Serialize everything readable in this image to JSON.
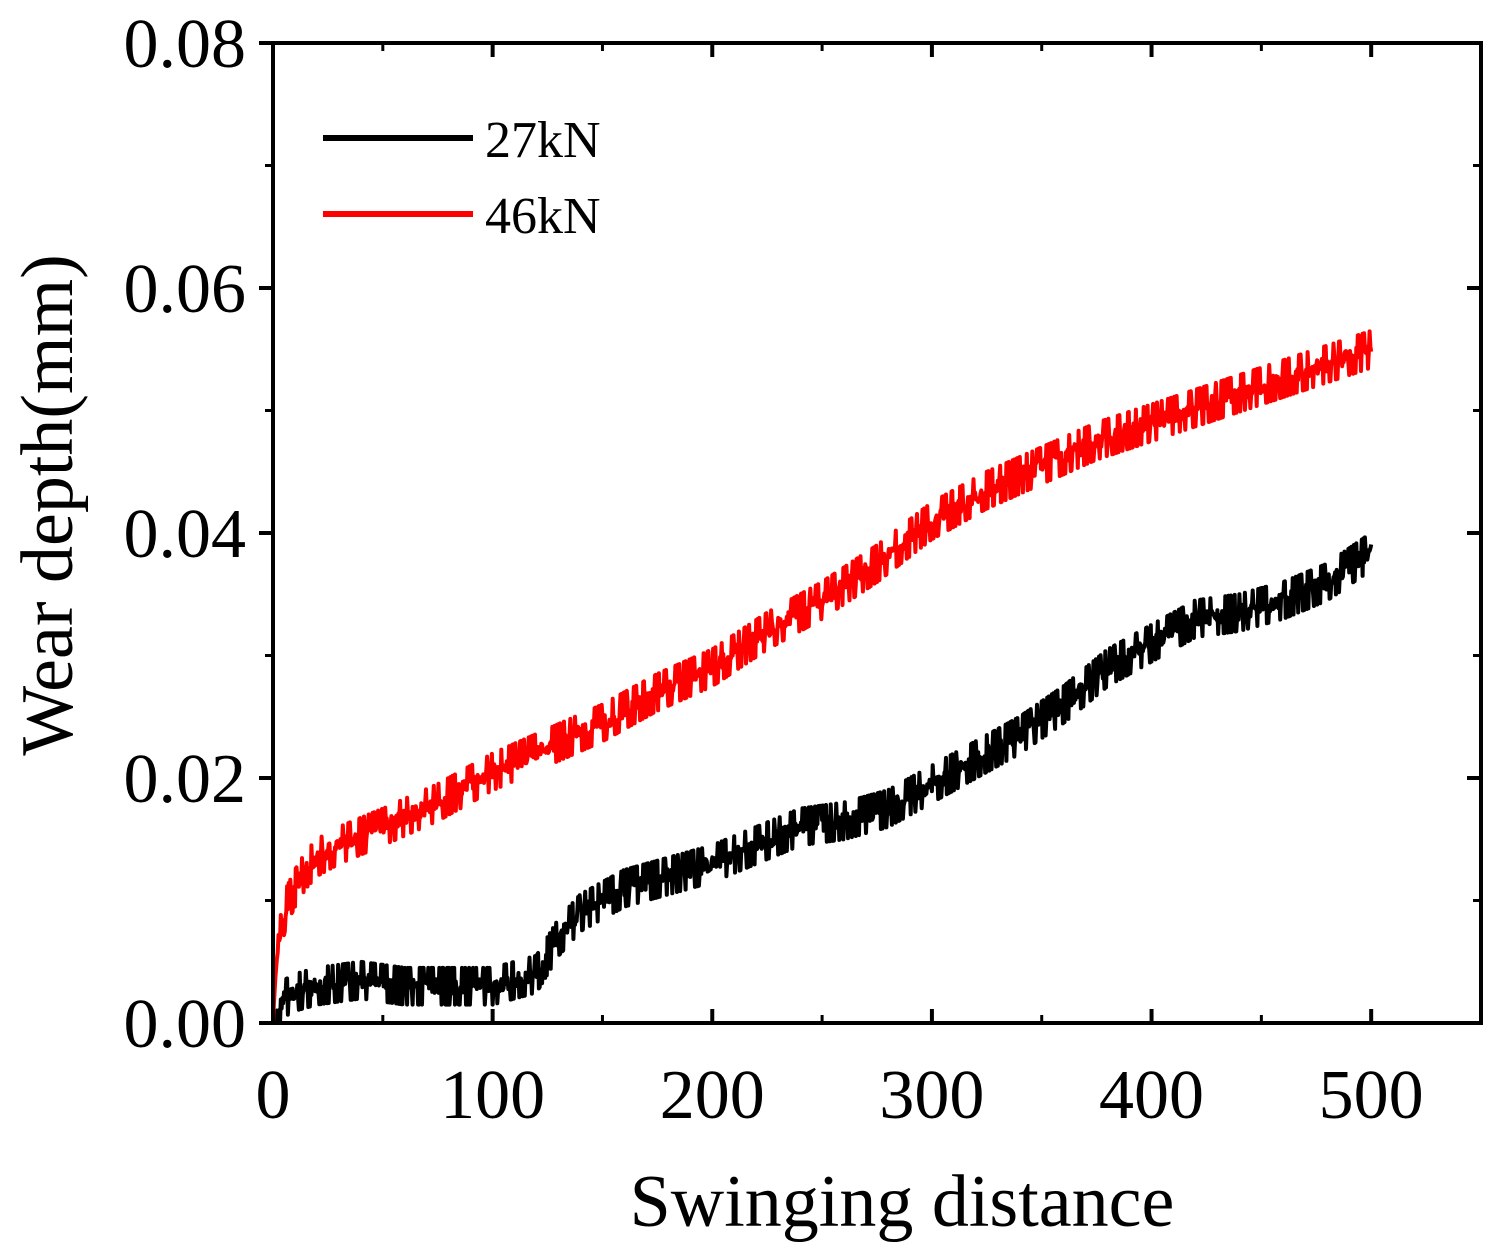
{
  "chart_data": {
    "type": "line",
    "title": "",
    "xlabel": "Swinging distance",
    "ylabel": "Wear depth(mm)",
    "xlim": [
      0,
      550
    ],
    "ylim": [
      0,
      0.08
    ],
    "x_ticks": [
      0,
      100,
      200,
      300,
      400,
      500
    ],
    "x_tick_labels": [
      "0",
      "100",
      "200",
      "300",
      "400",
      "500"
    ],
    "y_ticks": [
      0,
      0.02,
      0.04,
      0.06,
      0.08
    ],
    "y_tick_labels": [
      "0.00",
      "0.02",
      "0.04",
      "0.06",
      "0.08"
    ],
    "grid": false,
    "legend_position": "top-left",
    "series": [
      {
        "name": "27kN",
        "color": "#000000",
        "noise_amplitude": 0.0015,
        "x": [
          0,
          2,
          5,
          10,
          20,
          40,
          60,
          80,
          100,
          110,
          120,
          130,
          140,
          160,
          180,
          200,
          220,
          240,
          260,
          280,
          300,
          320,
          340,
          360,
          380,
          400,
          420,
          440,
          460,
          480,
          500
        ],
        "y": [
          0,
          0.001,
          0.002,
          0.0025,
          0.003,
          0.0035,
          0.003,
          0.003,
          0.003,
          0.0035,
          0.004,
          0.007,
          0.009,
          0.011,
          0.012,
          0.013,
          0.0145,
          0.016,
          0.0165,
          0.0175,
          0.0195,
          0.0215,
          0.0235,
          0.026,
          0.029,
          0.031,
          0.033,
          0.0335,
          0.0345,
          0.036,
          0.0385
        ]
      },
      {
        "name": "46kN",
        "color": "#ff0000",
        "noise_amplitude": 0.0015,
        "x": [
          0,
          1,
          3,
          6,
          10,
          15,
          20,
          30,
          50,
          75,
          100,
          125,
          150,
          175,
          200,
          225,
          250,
          275,
          300,
          325,
          350,
          375,
          400,
          425,
          450,
          475,
          500
        ],
        "y": [
          0,
          0.004,
          0.007,
          0.0095,
          0.011,
          0.0125,
          0.0135,
          0.0145,
          0.016,
          0.018,
          0.0205,
          0.0225,
          0.0245,
          0.027,
          0.029,
          0.032,
          0.0345,
          0.0375,
          0.041,
          0.0435,
          0.0455,
          0.0475,
          0.049,
          0.0505,
          0.052,
          0.0535,
          0.055
        ]
      }
    ]
  }
}
